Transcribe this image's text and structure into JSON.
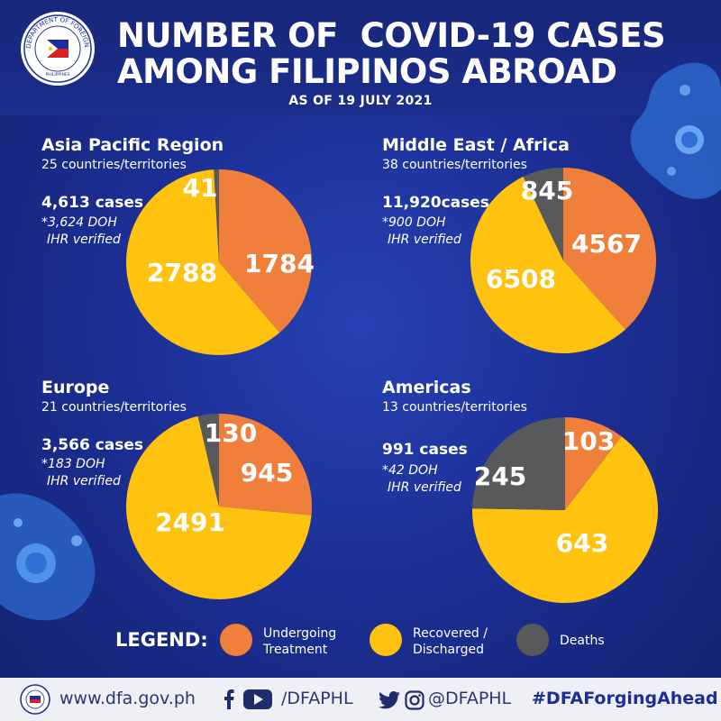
{
  "header": {
    "title_line1": "NUMBER OF  COVID-19 CASES",
    "title_line2": "AMONG FILIPINOS ABROAD",
    "as_of": "AS OF 19 JULY 2021"
  },
  "seal": {
    "text": "DEPARTMENT OF FOREIGN AFFAIRS",
    "sub": "PHILIPPINES"
  },
  "colors": {
    "undergoing": "#ef7f3a",
    "recovered": "#ffc20e",
    "deaths": "#58595b"
  },
  "chart_data": [
    {
      "type": "pie",
      "title": "Asia Pacific Region",
      "subtitle": "25 countries/territories",
      "total_label": "4,613 cases",
      "doh_line1": "*3,624 DOH",
      "doh_line2": "IHR verified",
      "slices": [
        {
          "label": "Undergoing Treatment",
          "value": 1784
        },
        {
          "label": "Recovered / Discharged",
          "value": 2788
        },
        {
          "label": "Deaths",
          "value": 41
        }
      ]
    },
    {
      "type": "pie",
      "title": "Middle East / Africa",
      "subtitle": "38 countries/territories",
      "total_label": "11,920cases",
      "doh_line1": "*900 DOH",
      "doh_line2": "IHR verified",
      "slices": [
        {
          "label": "Undergoing Treatment",
          "value": 4567
        },
        {
          "label": "Recovered / Discharged",
          "value": 6508
        },
        {
          "label": "Deaths",
          "value": 845
        }
      ]
    },
    {
      "type": "pie",
      "title": "Europe",
      "subtitle": "21 countries/territories",
      "total_label": "3,566 cases",
      "doh_line1": "*183 DOH",
      "doh_line2": "IHR verified",
      "slices": [
        {
          "label": "Undergoing Treatment",
          "value": 945
        },
        {
          "label": "Recovered / Discharged",
          "value": 2491
        },
        {
          "label": "Deaths",
          "value": 130
        }
      ]
    },
    {
      "type": "pie",
      "title": "Americas",
      "subtitle": "13 countries/territories",
      "total_label": "991 cases",
      "doh_line1": "*42 DOH",
      "doh_line2": "IHR verified",
      "slices": [
        {
          "label": "Undergoing Treatment",
          "value": 103
        },
        {
          "label": "Recovered / Discharged",
          "value": 643
        },
        {
          "label": "Deaths",
          "value": 245
        }
      ]
    }
  ],
  "legend": {
    "title": "LEGEND:",
    "items": [
      {
        "line1": "Undergoing",
        "line2": "Treatment",
        "icon": "orange-circle"
      },
      {
        "line1": "Recovered /",
        "line2": "Discharged",
        "icon": "yellow-circle"
      },
      {
        "line1": "Deaths",
        "line2": "",
        "icon": "gray-circle"
      }
    ]
  },
  "footer": {
    "website": "www.dfa.gov.ph",
    "facebook_youtube_handle": "/DFAPHL",
    "twitter_instagram_handle": "@DFAPHL",
    "hashtag": "#DFAForgingAhead",
    "icons": [
      "facebook-icon",
      "youtube-icon",
      "twitter-icon",
      "instagram-icon"
    ]
  }
}
